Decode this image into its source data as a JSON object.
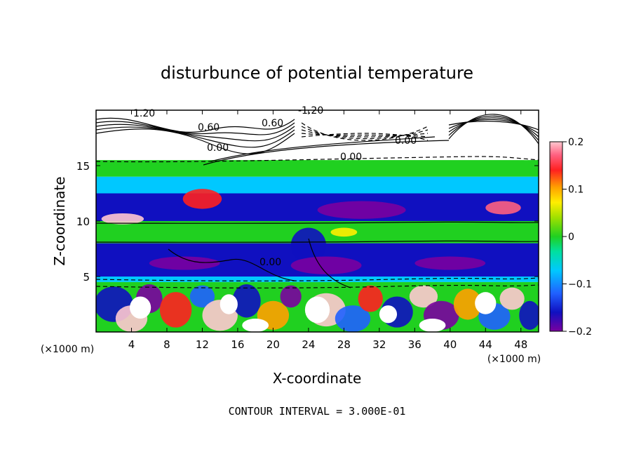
{
  "chart_data": {
    "type": "heatmap",
    "title": "disturbunce of potential temperature",
    "xlabel": "X-coordinate",
    "ylabel": "Z-coordinate",
    "x_unit_label": "(×1000 m)",
    "y_unit_label": "(×1000 m)",
    "xlim": [
      0,
      50
    ],
    "ylim": [
      0,
      20
    ],
    "x_ticks": [
      4,
      8,
      12,
      16,
      20,
      24,
      28,
      32,
      36,
      40,
      44,
      48
    ],
    "y_ticks": [
      5,
      10,
      15
    ],
    "footer": "CONTOUR INTERVAL = 3.000E-01",
    "colorbar": {
      "range": [
        -0.2,
        0.2
      ],
      "tick_labels": [
        "0.2",
        "0.1",
        "0",
        "−0.1",
        "−0.2"
      ],
      "tick_values": [
        0.2,
        0.1,
        0,
        -0.1,
        -0.2
      ]
    },
    "contour_labels": [
      "1.20",
      "0.60",
      "0.60",
      "-1.20",
      "0.00",
      "0.00",
      "0.00",
      "0.00"
    ],
    "bands": [
      {
        "z_from": 18.0,
        "z_to": 20.0,
        "value": "white"
      },
      {
        "z_from": 15.5,
        "z_to": 18.0,
        "value": "white"
      },
      {
        "z_from": 14.0,
        "z_to": 15.5,
        "value": 0.0
      },
      {
        "z_from": 12.5,
        "z_to": 14.0,
        "value": -0.06
      },
      {
        "z_from": 10.0,
        "z_to": 12.5,
        "value": -0.15
      },
      {
        "z_from": 8.0,
        "z_to": 10.0,
        "value": 0.0
      },
      {
        "z_from": 5.0,
        "z_to": 8.0,
        "value": -0.15
      },
      {
        "z_from": 4.5,
        "z_to": 5.0,
        "value": -0.08
      },
      {
        "z_from": 0.0,
        "z_to": 4.5,
        "value": "mixed"
      }
    ]
  }
}
